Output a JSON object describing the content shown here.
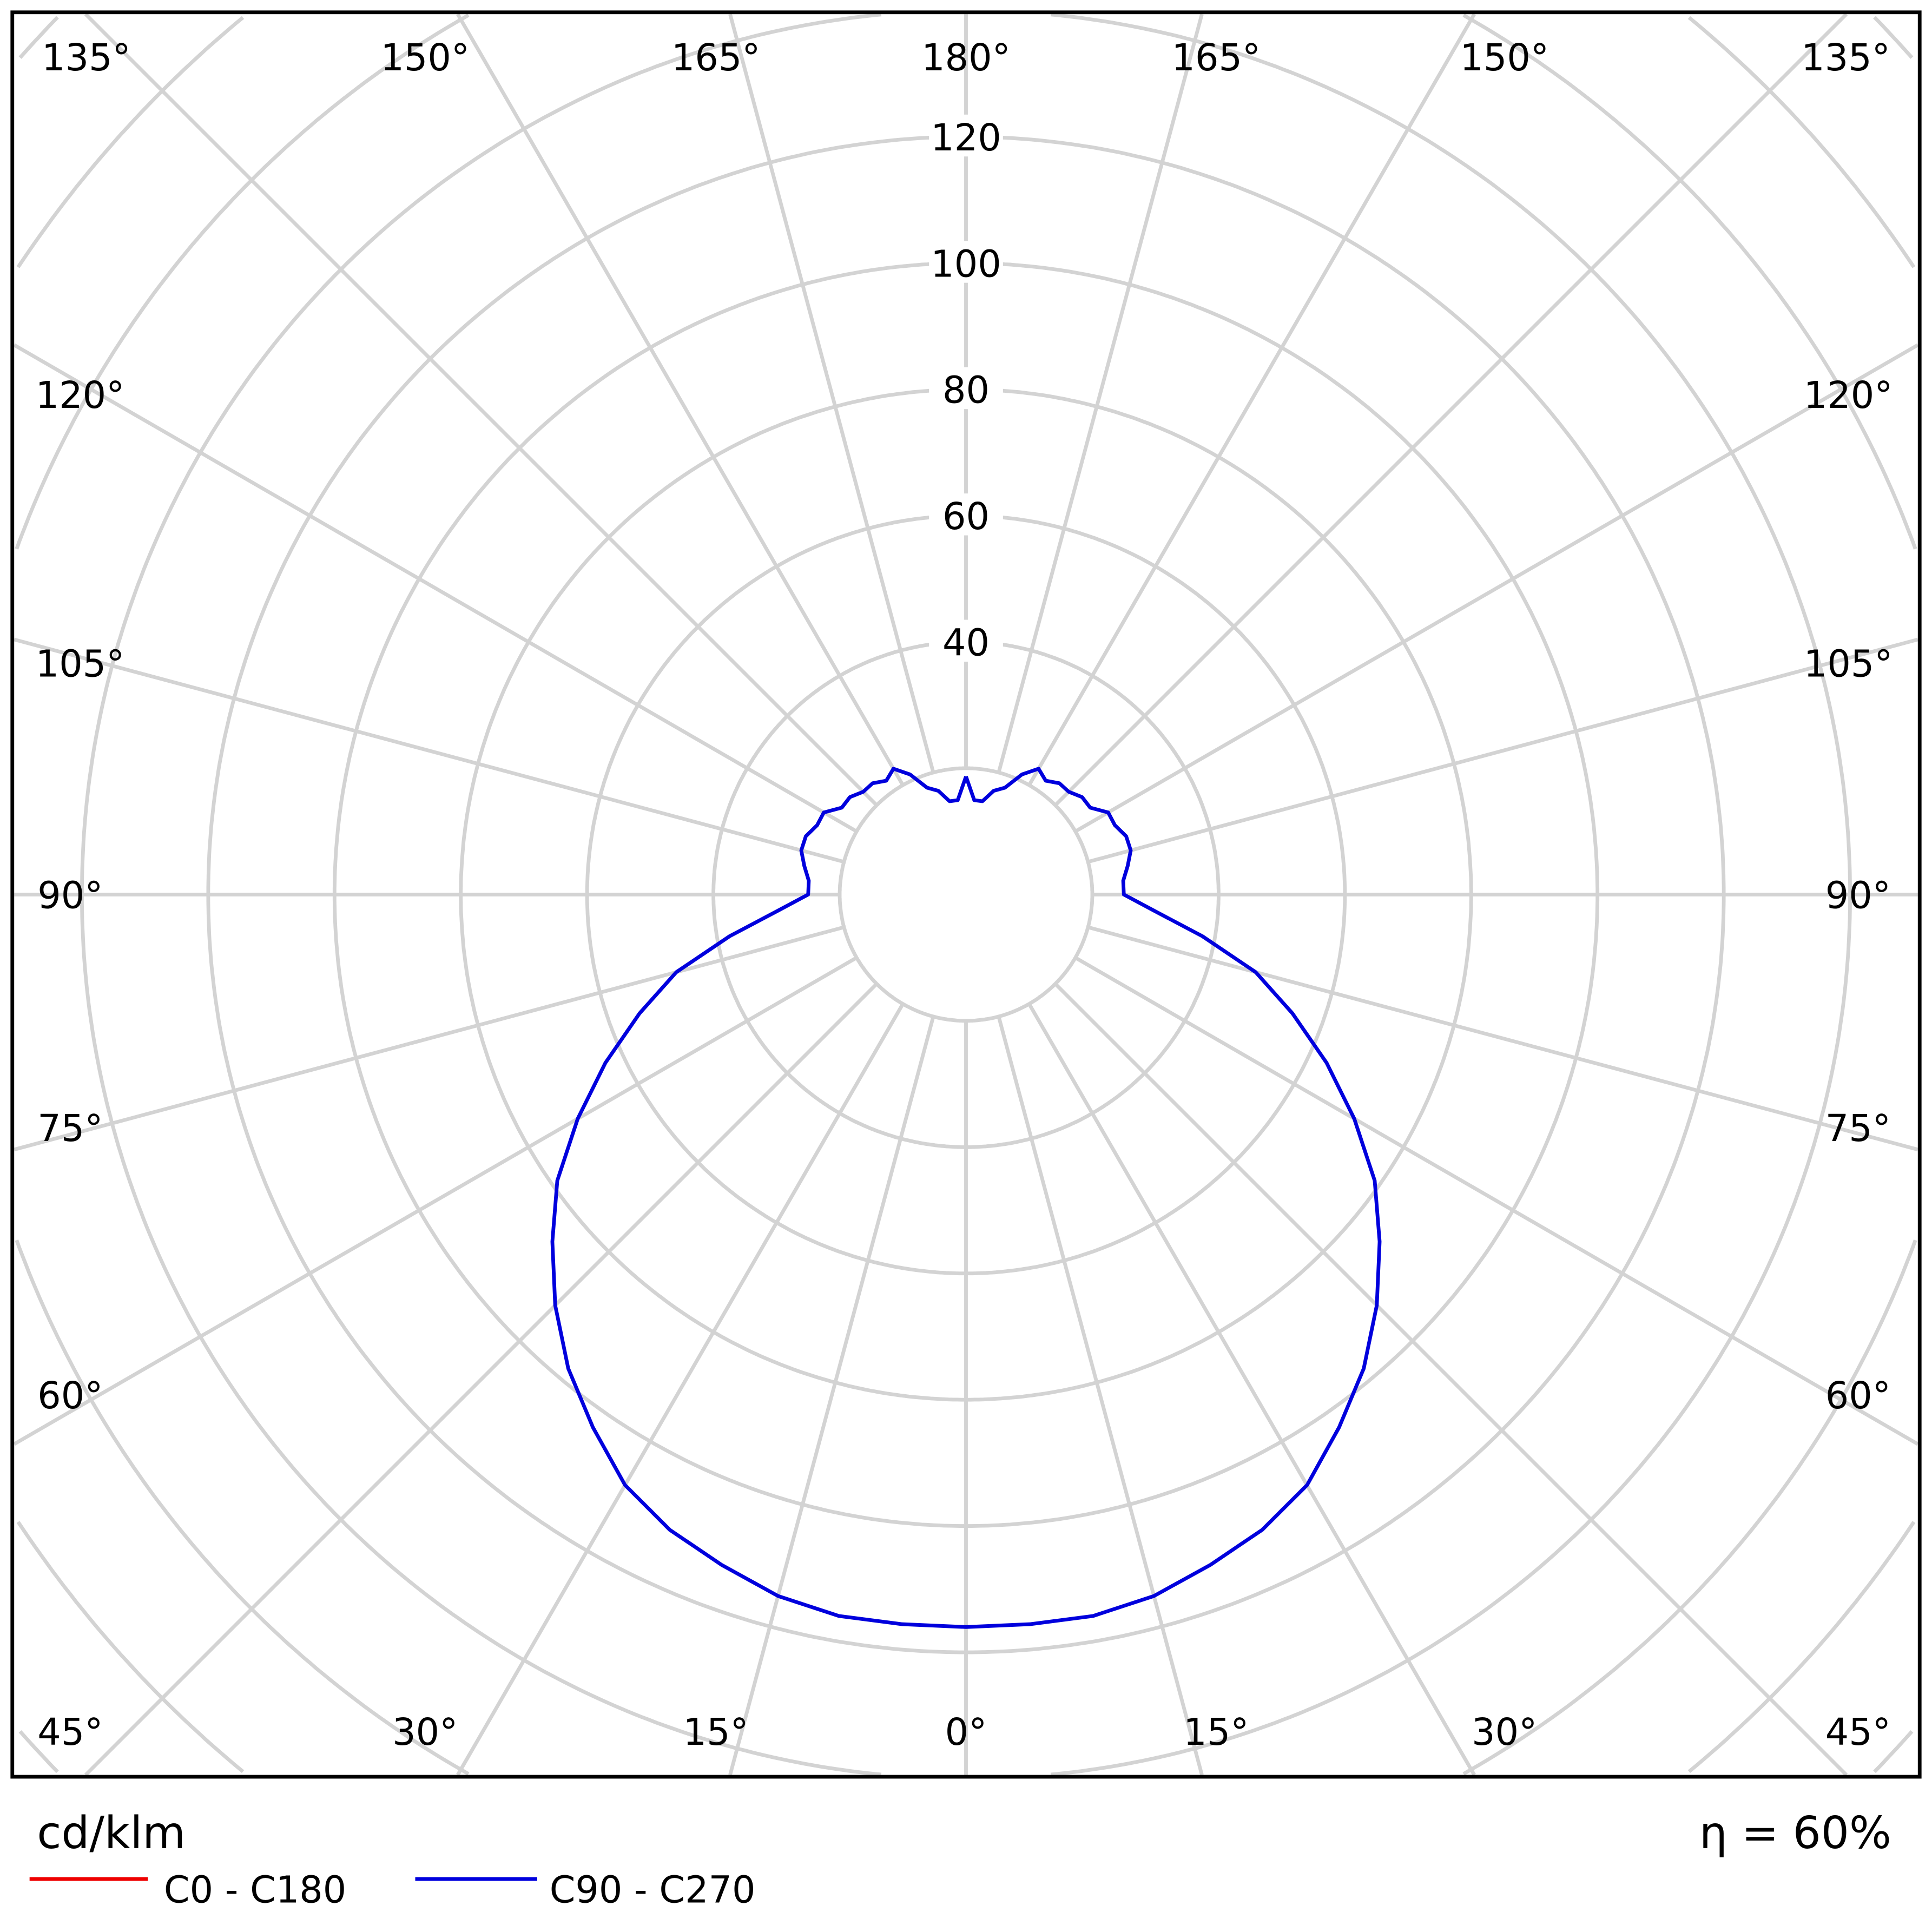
{
  "chart_data": {
    "type": "polar",
    "unit_label": "cd/klm",
    "efficiency_label": "η = 60%",
    "radial_ticks": [
      20,
      40,
      60,
      80,
      100,
      120,
      140,
      160,
      180,
      200
    ],
    "radial_tick_labels": [
      "40",
      "60",
      "80",
      "100",
      "120"
    ],
    "radial_tick_label_values": [
      40,
      60,
      80,
      100,
      120
    ],
    "angle_ticks": [
      0,
      15,
      30,
      45,
      60,
      75,
      90,
      105,
      120,
      135,
      150,
      165,
      180
    ],
    "angle_tick_labels": [
      "0°",
      "15°",
      "30°",
      "45°",
      "60°",
      "75°",
      "90°",
      "105°",
      "120°",
      "135°",
      "150°",
      "165°",
      "180°"
    ],
    "grid": true,
    "legend_placement": "bottom-left",
    "series": [
      {
        "name": "C0 - C180",
        "color": "#ee0000",
        "gamma": [],
        "values": []
      },
      {
        "name": "C90 - C270",
        "color": "#0000dd",
        "gamma": [
          0,
          5,
          10,
          15,
          20,
          25,
          30,
          35,
          40,
          45,
          50,
          55,
          60,
          65,
          70,
          75,
          80,
          85,
          90,
          95,
          100,
          105,
          110,
          115,
          120,
          125,
          130,
          135,
          140,
          145,
          150,
          155,
          160,
          165,
          170,
          175,
          180
        ],
        "values": [
          116,
          116,
          116,
          115,
          113,
          111,
          108,
          103,
          98,
          92,
          85.5,
          79,
          71,
          63,
          55,
          47.5,
          38,
          30,
          25,
          25,
          26,
          27,
          27,
          26,
          26,
          24,
          24,
          23,
          23,
          22,
          23,
          21,
          18,
          17,
          15,
          15,
          18.7
        ]
      }
    ]
  }
}
